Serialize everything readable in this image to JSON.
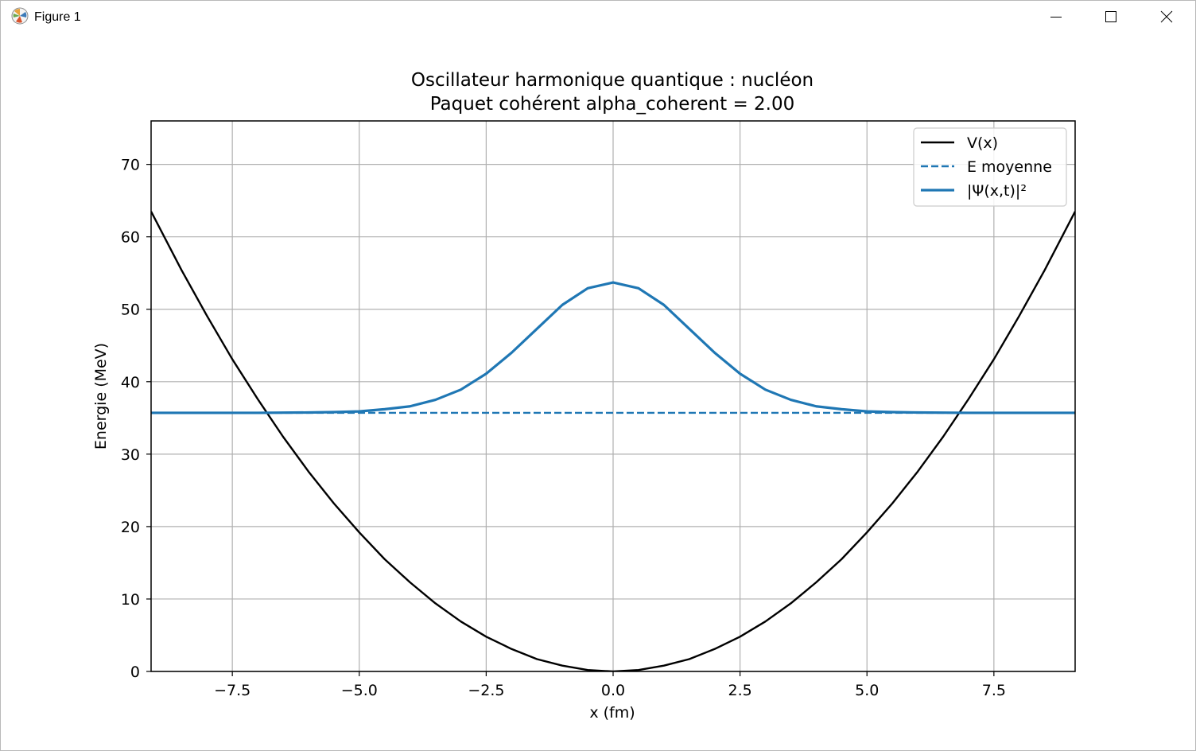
{
  "window": {
    "title": "Figure 1",
    "icons": {
      "app": "matplotlib-icon",
      "minimize": "minimize-icon",
      "maximize": "maximize-icon",
      "close": "close-icon"
    }
  },
  "chart_data": {
    "type": "line",
    "title": "Oscillateur harmonique quantique : nucléon",
    "subtitle": "Paquet cohérent alpha_coherent = 2.00",
    "xlabel": "x (fm)",
    "ylabel": "Energie (MeV)",
    "xlim": [
      -9.1,
      9.1
    ],
    "ylim": [
      0,
      76
    ],
    "xticks": [
      -7.5,
      -5.0,
      -2.5,
      0.0,
      2.5,
      5.0,
      7.5
    ],
    "xtick_labels": [
      "−7.5",
      "−5.0",
      "−2.5",
      "0.0",
      "2.5",
      "5.0",
      "7.5"
    ],
    "yticks": [
      0,
      10,
      20,
      30,
      40,
      50,
      60,
      70
    ],
    "ytick_labels": [
      "0",
      "10",
      "20",
      "30",
      "40",
      "50",
      "60",
      "70"
    ],
    "grid": true,
    "legend_position": "top-right",
    "series": [
      {
        "name": "V(x)",
        "color": "#000000",
        "style": "solid",
        "x": [
          -9.1,
          -8.5,
          -8.0,
          -7.5,
          -7.0,
          -6.5,
          -6.0,
          -5.5,
          -5.0,
          -4.5,
          -4.0,
          -3.5,
          -3.0,
          -2.5,
          -2.0,
          -1.5,
          -1.0,
          -0.5,
          0.0,
          0.5,
          1.0,
          1.5,
          2.0,
          2.5,
          3.0,
          3.5,
          4.0,
          4.5,
          5.0,
          5.5,
          6.0,
          6.5,
          7.0,
          7.5,
          8.0,
          8.5,
          9.1
        ],
        "y": [
          63.5,
          55.4,
          49.1,
          43.1,
          37.6,
          32.4,
          27.6,
          23.2,
          19.2,
          15.5,
          12.3,
          9.4,
          6.9,
          4.8,
          3.1,
          1.7,
          0.8,
          0.2,
          0.0,
          0.2,
          0.8,
          1.7,
          3.1,
          4.8,
          6.9,
          9.4,
          12.3,
          15.5,
          19.2,
          23.2,
          27.6,
          32.4,
          37.6,
          43.1,
          49.1,
          55.4,
          63.5
        ]
      },
      {
        "name": "E moyenne",
        "color": "#1f77b4",
        "style": "dashed",
        "x": [
          -9.1,
          9.1
        ],
        "y": [
          35.7,
          35.7
        ]
      },
      {
        "name": "|Ψ(x,t)|²",
        "color": "#1f77b4",
        "style": "solid",
        "x": [
          -9.1,
          -8.0,
          -7.0,
          -6.0,
          -5.5,
          -5.0,
          -4.5,
          -4.0,
          -3.5,
          -3.0,
          -2.5,
          -2.0,
          -1.5,
          -1.0,
          -0.5,
          0.0,
          0.5,
          1.0,
          1.5,
          2.0,
          2.5,
          3.0,
          3.5,
          4.0,
          4.5,
          5.0,
          5.5,
          6.0,
          7.0,
          8.0,
          9.1
        ],
        "y": [
          35.7,
          35.7,
          35.7,
          35.75,
          35.8,
          35.9,
          36.2,
          36.6,
          37.5,
          38.9,
          41.1,
          44.0,
          47.3,
          50.6,
          52.9,
          53.7,
          52.9,
          50.6,
          47.3,
          44.0,
          41.1,
          38.9,
          37.5,
          36.6,
          36.2,
          35.9,
          35.8,
          35.75,
          35.7,
          35.7,
          35.7
        ]
      }
    ]
  }
}
